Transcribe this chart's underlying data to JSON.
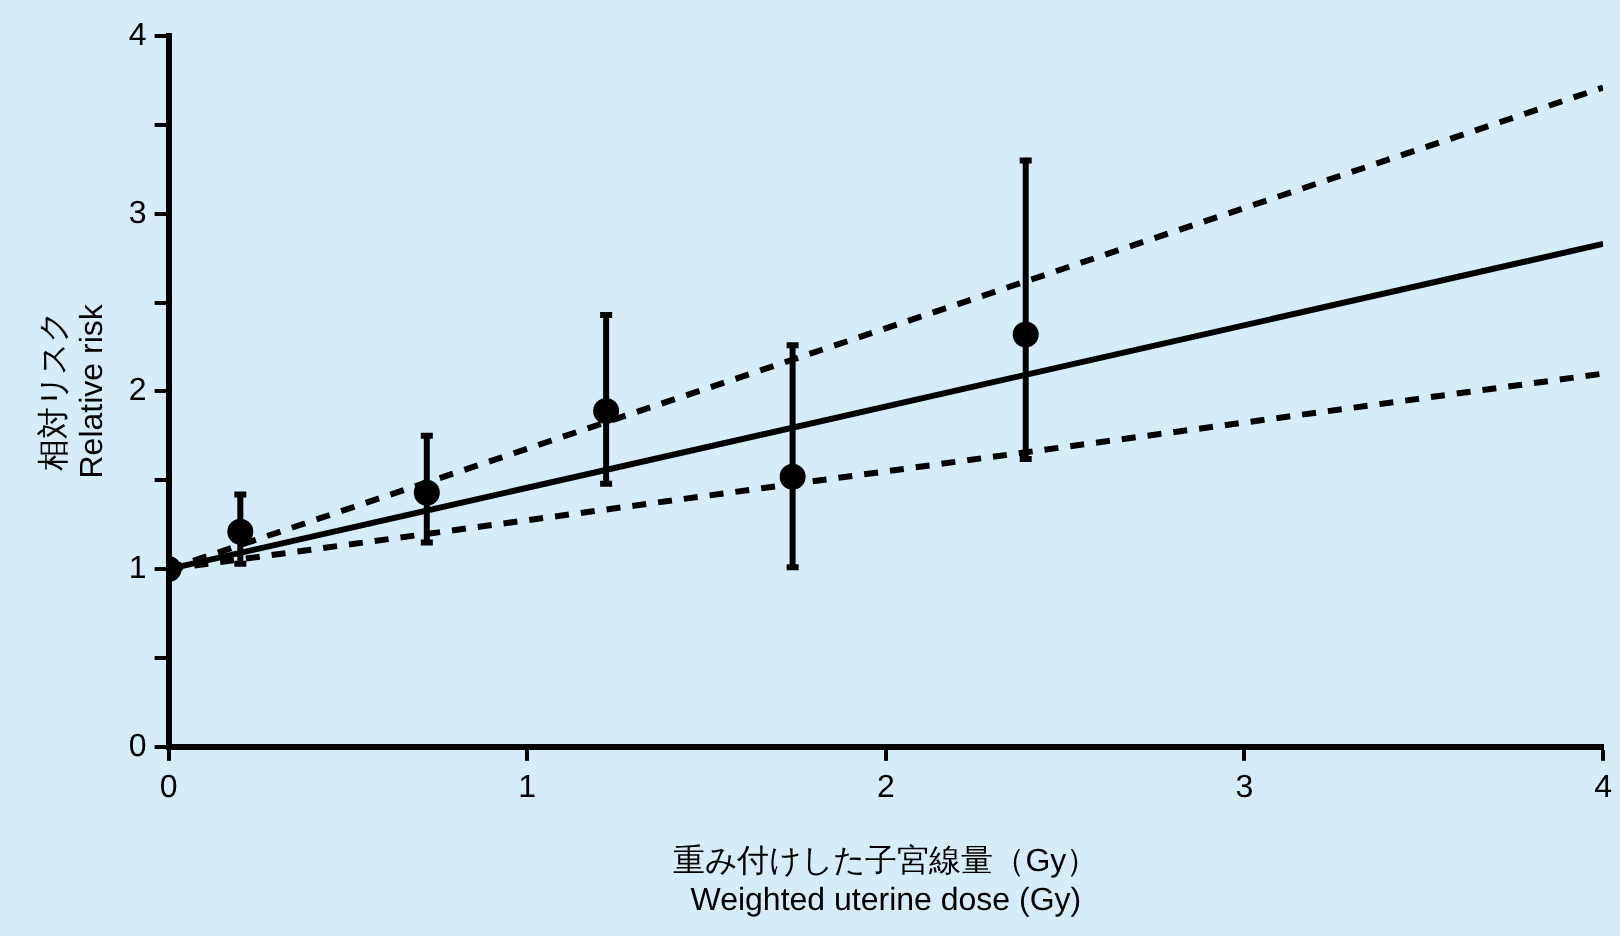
{
  "chart_data": {
    "type": "scatter",
    "xlabel": "重み付けした子宮線量（Gy）\nWeighted uterine dose (Gy)",
    "ylabel": "相対リスク\nRelative risk",
    "xlim": [
      0,
      4
    ],
    "xticks": [
      0,
      1,
      2,
      3,
      4
    ],
    "ylim": [
      0,
      4
    ],
    "yticks": [
      0,
      {
        "value": 0.5,
        "label": null
      },
      1,
      {
        "value": 1.5,
        "label": null
      },
      2,
      {
        "value": 2.5,
        "label": null
      },
      3,
      {
        "value": 3.5,
        "label": null
      },
      4
    ],
    "grid": false,
    "legend": false,
    "series": [
      {
        "color": "#000000",
        "marker": "circle",
        "x": [
          0,
          0.2,
          0.72,
          1.22,
          1.74,
          2.39
        ],
        "values": [
          1,
          1.21,
          1.43,
          1.89,
          1.52,
          2.32
        ],
        "errors": [
          null,
          [
            1.03,
            1.42
          ],
          [
            1.15,
            1.75
          ],
          [
            1.48,
            2.43
          ],
          [
            1.01,
            2.26
          ],
          [
            1.62,
            3.3
          ]
        ]
      },
      {
        "type": "line",
        "color": "#000000",
        "marker": "none",
        "line_style": "solid",
        "x": [
          0,
          4
        ],
        "values": [
          1,
          2.83
        ]
      },
      {
        "type": "line",
        "color": "#000000",
        "marker": "none",
        "line_style": "dashed",
        "x": [
          0,
          4
        ],
        "values": [
          1,
          3.71
        ]
      },
      {
        "type": "line",
        "color": "#000000",
        "marker": "none",
        "line_style": "dashed",
        "x": [
          0,
          4
        ],
        "values": [
          1,
          2.1
        ]
      }
    ]
  }
}
